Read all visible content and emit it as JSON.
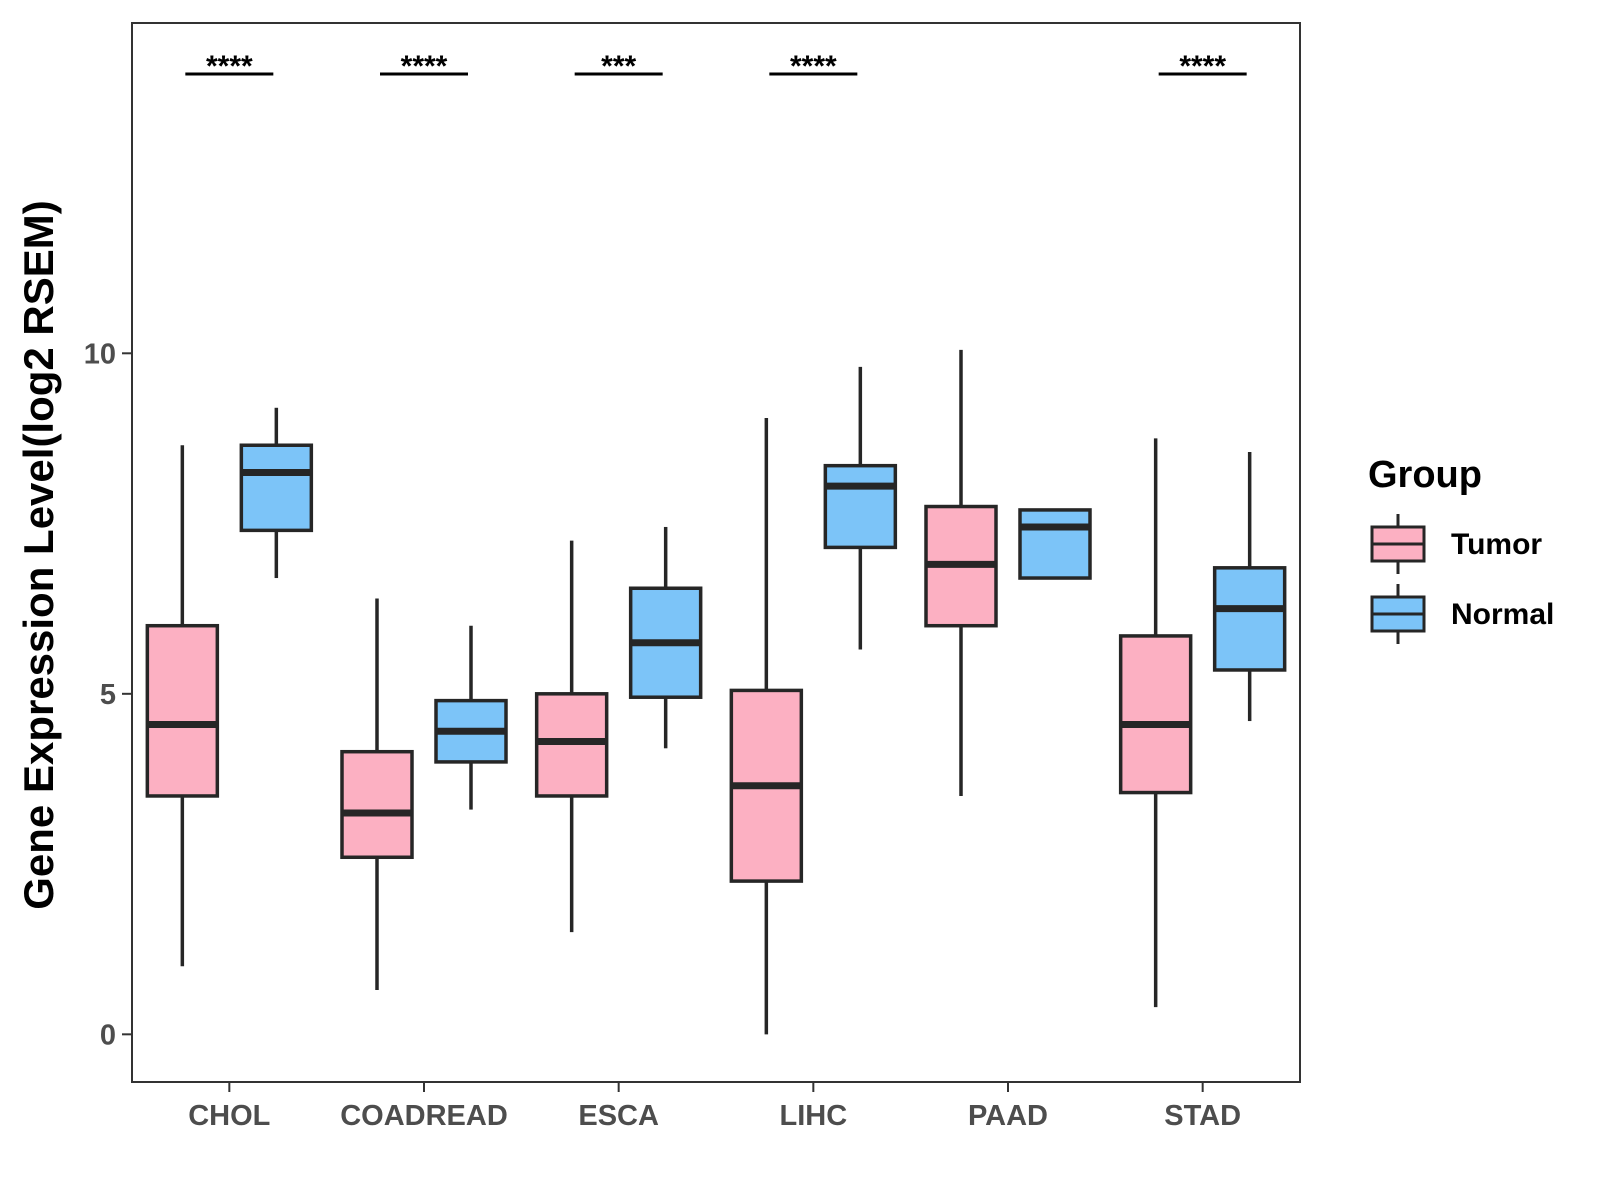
{
  "chart_data": {
    "type": "boxplot",
    "title": "",
    "xlabel": "",
    "ylabel": "Gene Expression Level(log2 RSEM)",
    "ylim": [
      -0.7,
      14.85
    ],
    "yticks": [
      0,
      5,
      10
    ],
    "categories": [
      "CHOL",
      "COADREAD",
      "ESCA",
      "LIHC",
      "PAAD",
      "STAD"
    ],
    "legend": {
      "title": "Group",
      "position": "right",
      "items": [
        {
          "label": "Tumor",
          "color": "#FCB0C2"
        },
        {
          "label": "Normal",
          "color": "#7CC4F8"
        }
      ]
    },
    "series": [
      {
        "name": "Tumor",
        "color": "#FCB0C2",
        "boxes": [
          {
            "category": "CHOL",
            "whisker_low": 1.0,
            "q1": 3.5,
            "median": 4.55,
            "q3": 6.0,
            "whisker_high": 8.65
          },
          {
            "category": "COADREAD",
            "whisker_low": 0.65,
            "q1": 2.6,
            "median": 3.25,
            "q3": 4.15,
            "whisker_high": 6.4
          },
          {
            "category": "ESCA",
            "whisker_low": 1.5,
            "q1": 3.5,
            "median": 4.3,
            "q3": 5.0,
            "whisker_high": 7.25
          },
          {
            "category": "LIHC",
            "whisker_low": 0.0,
            "q1": 2.25,
            "median": 3.65,
            "q3": 5.05,
            "whisker_high": 9.05
          },
          {
            "category": "PAAD",
            "whisker_low": 3.5,
            "q1": 6.0,
            "median": 6.9,
            "q3": 7.75,
            "whisker_high": 10.05
          },
          {
            "category": "STAD",
            "whisker_low": 0.4,
            "q1": 3.55,
            "median": 4.55,
            "q3": 5.85,
            "whisker_high": 8.75
          }
        ]
      },
      {
        "name": "Normal",
        "color": "#7CC4F8",
        "boxes": [
          {
            "category": "CHOL",
            "whisker_low": 6.7,
            "q1": 7.4,
            "median": 8.25,
            "q3": 8.65,
            "whisker_high": 9.2
          },
          {
            "category": "COADREAD",
            "whisker_low": 3.3,
            "q1": 4.0,
            "median": 4.45,
            "q3": 4.9,
            "whisker_high": 6.0
          },
          {
            "category": "ESCA",
            "whisker_low": 4.2,
            "q1": 4.95,
            "median": 5.75,
            "q3": 6.55,
            "whisker_high": 7.45
          },
          {
            "category": "LIHC",
            "whisker_low": 5.65,
            "q1": 7.15,
            "median": 8.05,
            "q3": 8.35,
            "whisker_high": 9.8
          },
          {
            "category": "PAAD",
            "whisker_low": 6.7,
            "q1": 6.7,
            "median": 7.45,
            "q3": 7.7,
            "whisker_high": 7.7
          },
          {
            "category": "STAD",
            "whisker_low": 4.6,
            "q1": 5.35,
            "median": 6.25,
            "q3": 6.85,
            "whisker_high": 8.55
          }
        ]
      }
    ],
    "significance": [
      {
        "category": "CHOL",
        "label": "****"
      },
      {
        "category": "COADREAD",
        "label": "****"
      },
      {
        "category": "ESCA",
        "label": "***"
      },
      {
        "category": "LIHC",
        "label": "****"
      },
      {
        "category": "STAD",
        "label": "****"
      }
    ]
  }
}
